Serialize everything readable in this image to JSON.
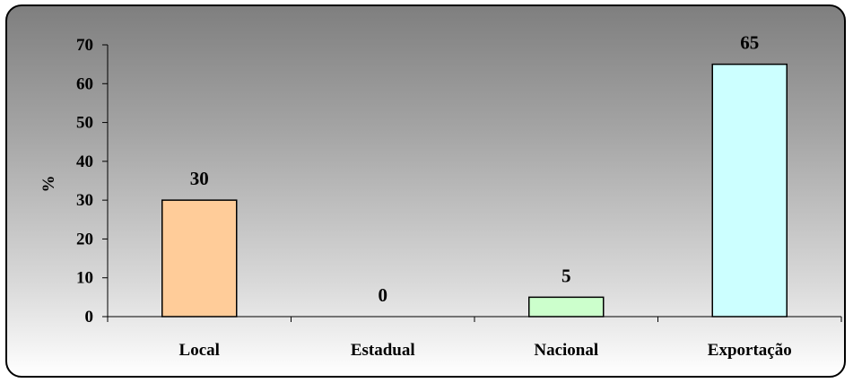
{
  "chart_data": {
    "type": "bar",
    "categories": [
      "Local",
      "Estadual",
      "Nacional",
      "Exportação"
    ],
    "values": [
      30,
      0,
      5,
      65
    ],
    "data_labels": [
      "30",
      "0",
      "5",
      "65"
    ],
    "ylabel": "%",
    "xlabel": "",
    "title": "",
    "ylim": [
      0,
      70
    ],
    "yticks": [
      "0",
      "10",
      "20",
      "30",
      "40",
      "50",
      "60",
      "70"
    ],
    "grid": false,
    "bar_colors": [
      "#ffcc99",
      "#ffffff",
      "#ccffcc",
      "#ccffff"
    ],
    "bar_edge_color": "#000000",
    "background_gradient": [
      "#7f7f7f",
      "#ffffff"
    ]
  }
}
